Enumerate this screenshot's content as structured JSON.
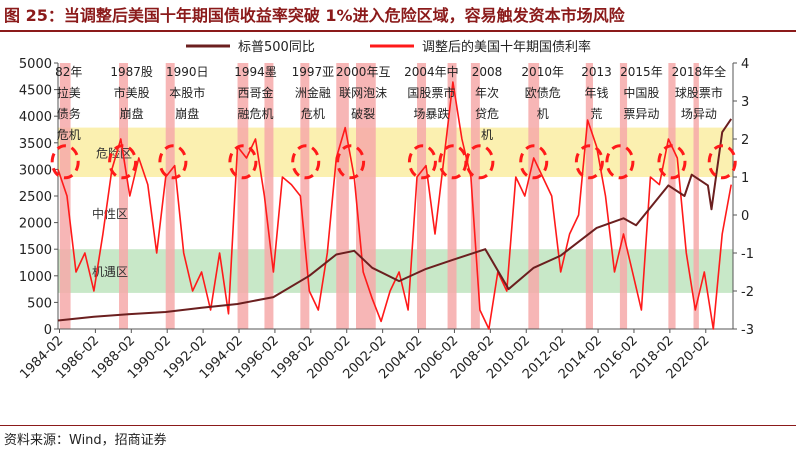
{
  "title": "图 25：当调整后美国十年期国债收益率突破 1%进入危险区域，容易触发资本市场风险",
  "source": "资料来源：Wind，招商证券",
  "chart_data": {
    "type": "line",
    "legend_position": "top",
    "y_left": {
      "range": [
        0,
        5000
      ],
      "ticks": [
        "0",
        "500",
        "1000",
        "1500",
        "2000",
        "2500",
        "3000",
        "3500",
        "4000",
        "4500",
        "5000"
      ]
    },
    "y_right": {
      "range": [
        -3,
        4
      ],
      "ticks": [
        "-3",
        "-2",
        "-1",
        "0",
        "1",
        "2",
        "3",
        "4"
      ]
    },
    "x_ticks": [
      "1984-02",
      "1986-02",
      "1988-02",
      "1990-02",
      "1992-02",
      "1994-02",
      "1996-02",
      "1998-02",
      "2000-02",
      "2002-02",
      "2004-02",
      "2006-02",
      "2008-02",
      "2010-02",
      "2012-02",
      "2014-02",
      "2016-02",
      "2018-02",
      "2020-02"
    ],
    "colors": {
      "sp500": "#6b1f1f",
      "yield": "#ff1a1a",
      "danger": "#fbf0b0",
      "opportunity": "#c8e8c8",
      "event_band": "#f6a9a9",
      "dash": "#ff1a1a"
    },
    "zones": [
      {
        "label": "危险区",
        "y_from": 1,
        "y_to": 2.3,
        "color": "danger"
      },
      {
        "label": "中性区",
        "y_from": -0.9,
        "y_to": 1,
        "color": "none"
      },
      {
        "label": "机遇区",
        "y_from": -2.05,
        "y_to": -0.9,
        "color": "opportunity"
      }
    ],
    "series": [
      {
        "name": "标普500同比",
        "axis": "left",
        "color": "sp500",
        "x": [
          1984.0,
          1986.0,
          1988.0,
          1990.0,
          1992.0,
          1994.0,
          1996.0,
          1998.0,
          1999.5,
          2000.5,
          2001.5,
          2003.0,
          2004.5,
          2006.0,
          2007.8,
          2009.1,
          2010.5,
          2012.0,
          2014.0,
          2015.5,
          2016.2,
          2018.0,
          2018.9,
          2019.3,
          2020.2,
          2020.4,
          2021.0,
          2021.5
        ],
        "values": [
          160,
          230,
          280,
          320,
          400,
          470,
          600,
          1000,
          1400,
          1470,
          1150,
          900,
          1130,
          1300,
          1500,
          750,
          1150,
          1380,
          1900,
          2080,
          1950,
          2700,
          2500,
          2900,
          2700,
          2250,
          3700,
          3950
        ]
      },
      {
        "name": "调整后的美国十年期国债利率",
        "axis": "right",
        "color": "yield",
        "x": [
          1984.0,
          1984.5,
          1985.0,
          1985.5,
          1986.0,
          1986.5,
          1987.0,
          1987.5,
          1988.0,
          1988.5,
          1989.0,
          1989.5,
          1990.0,
          1990.5,
          1991.0,
          1991.5,
          1992.0,
          1992.5,
          1993.0,
          1993.5,
          1994.0,
          1994.5,
          1995.0,
          1995.5,
          1996.0,
          1996.5,
          1997.0,
          1997.5,
          1998.0,
          1998.5,
          1999.0,
          1999.5,
          2000.0,
          2000.5,
          2001.0,
          2001.5,
          2002.0,
          2002.5,
          2003.0,
          2003.5,
          2004.0,
          2004.5,
          2005.0,
          2005.5,
          2006.0,
          2006.5,
          2007.0,
          2007.5,
          2008.0,
          2008.5,
          2009.0,
          2009.5,
          2010.0,
          2010.5,
          2011.0,
          2011.5,
          2012.0,
          2012.5,
          2013.0,
          2013.5,
          2014.0,
          2014.5,
          2015.0,
          2015.5,
          2016.0,
          2016.5,
          2017.0,
          2017.5,
          2018.0,
          2018.5,
          2019.0,
          2019.5,
          2020.0,
          2020.5,
          2021.0,
          2021.5
        ],
        "values": [
          1.2,
          0.5,
          -1.5,
          -1.0,
          -2.0,
          -0.5,
          1.2,
          2.0,
          0.5,
          1.5,
          0.8,
          -1.0,
          1.0,
          1.3,
          -1.0,
          -2.0,
          -1.5,
          -2.5,
          -1.0,
          -2.6,
          1.8,
          1.5,
          2.0,
          0.5,
          -1.5,
          1.0,
          0.8,
          0.5,
          -2.0,
          -2.5,
          -1.0,
          1.5,
          2.3,
          1.0,
          -1.5,
          -2.2,
          -2.8,
          -2.0,
          -1.5,
          -2.5,
          1.0,
          1.3,
          -0.5,
          1.5,
          3.5,
          2.0,
          1.0,
          -2.5,
          -3.0,
          -1.5,
          -2.0,
          1.0,
          0.5,
          1.5,
          1.0,
          0.5,
          -1.5,
          -0.5,
          0.0,
          2.5,
          1.8,
          0.5,
          -1.5,
          -0.5,
          -1.5,
          -2.5,
          1.0,
          0.8,
          2.0,
          1.5,
          -1.0,
          -2.5,
          -1.5,
          -3.0,
          -0.5,
          0.8
        ]
      }
    ],
    "event_bands": [
      {
        "x_from": 1984.1,
        "x_to": 1984.7
      },
      {
        "x_from": 1987.4,
        "x_to": 1987.9
      },
      {
        "x_from": 1990.0,
        "x_to": 1990.5
      },
      {
        "x_from": 1994.0,
        "x_to": 1994.6
      },
      {
        "x_from": 1995.5,
        "x_to": 1996.0
      },
      {
        "x_from": 1997.5,
        "x_to": 1998.0
      },
      {
        "x_from": 1999.5,
        "x_to": 2000.2
      },
      {
        "x_from": 2000.6,
        "x_to": 2001.7
      },
      {
        "x_from": 2004.0,
        "x_to": 2004.5
      },
      {
        "x_from": 2005.7,
        "x_to": 2006.2
      },
      {
        "x_from": 2007.0,
        "x_to": 2007.5
      },
      {
        "x_from": 2010.2,
        "x_to": 2010.8
      },
      {
        "x_from": 2013.4,
        "x_to": 2013.8
      },
      {
        "x_from": 2015.3,
        "x_to": 2015.7
      },
      {
        "x_from": 2018.0,
        "x_to": 2018.4
      },
      {
        "x_from": 2019.4,
        "x_to": 2019.7
      }
    ],
    "highlight_circles": [
      1984.4,
      1987.6,
      1990.4,
      1994.3,
      1997.8,
      2000.3,
      2004.3,
      2006.0,
      2007.5,
      2010.5,
      2013.6,
      2015.3,
      2018.2,
      2021.0
    ],
    "events": [
      {
        "x": 1984.6,
        "label": "82年\n拉美\n债务\n危机"
      },
      {
        "x": 1988.1,
        "label": "1987股\n市美股\n崩盘"
      },
      {
        "x": 1991.2,
        "label": "1990日\n本股市\n崩盘"
      },
      {
        "x": 1995.0,
        "label": "1994墨\n西哥金\n融危机"
      },
      {
        "x": 1998.2,
        "label": "1997亚\n洲金融\n危机"
      },
      {
        "x": 2001.0,
        "label": "2000年互\n联网泡沫\n破裂"
      },
      {
        "x": 2004.8,
        "label": "2004年中\n国股票市\n场暴跌"
      },
      {
        "x": 2007.9,
        "label": "2008\n年次\n贷危\n机"
      },
      {
        "x": 2011.0,
        "label": "2010年\n欧债危\n机"
      },
      {
        "x": 2014.0,
        "label": "2013\n年钱\n荒"
      },
      {
        "x": 2016.5,
        "label": "2015年\n中国股\n票异动"
      },
      {
        "x": 2019.7,
        "label": "2018年全\n球股票市\n场异动"
      }
    ]
  }
}
